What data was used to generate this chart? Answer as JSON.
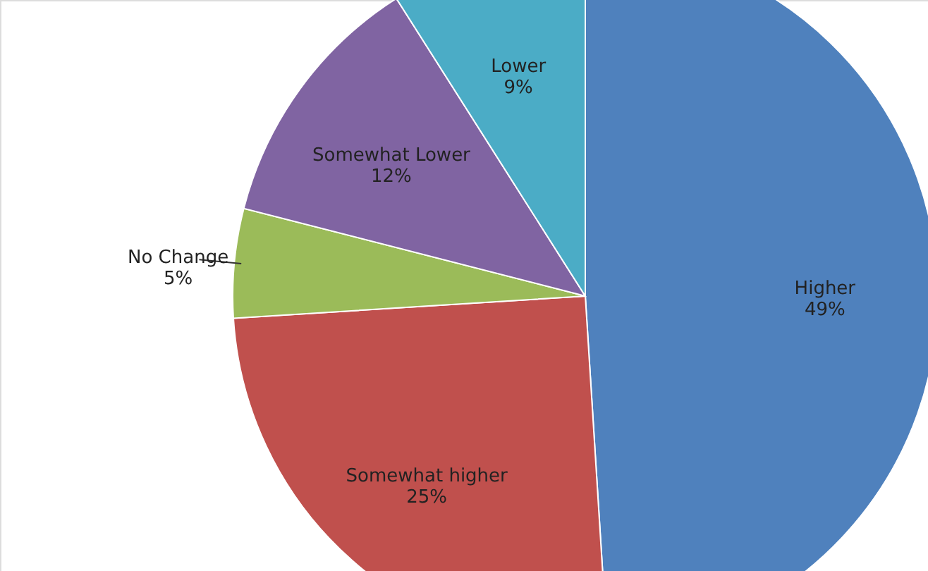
{
  "chart_data": {
    "type": "pie",
    "categories": [
      "Higher",
      "Somewhat higher",
      "No Change",
      "Somewhat Lower",
      "Lower"
    ],
    "values": [
      49,
      25,
      5,
      12,
      9
    ],
    "value_labels": [
      "49%",
      "25%",
      "5%",
      "12%",
      "9%"
    ],
    "colors": [
      "#4f81bd",
      "#c0504d",
      "#9bbb59",
      "#8064a2",
      "#4bacc6"
    ]
  }
}
